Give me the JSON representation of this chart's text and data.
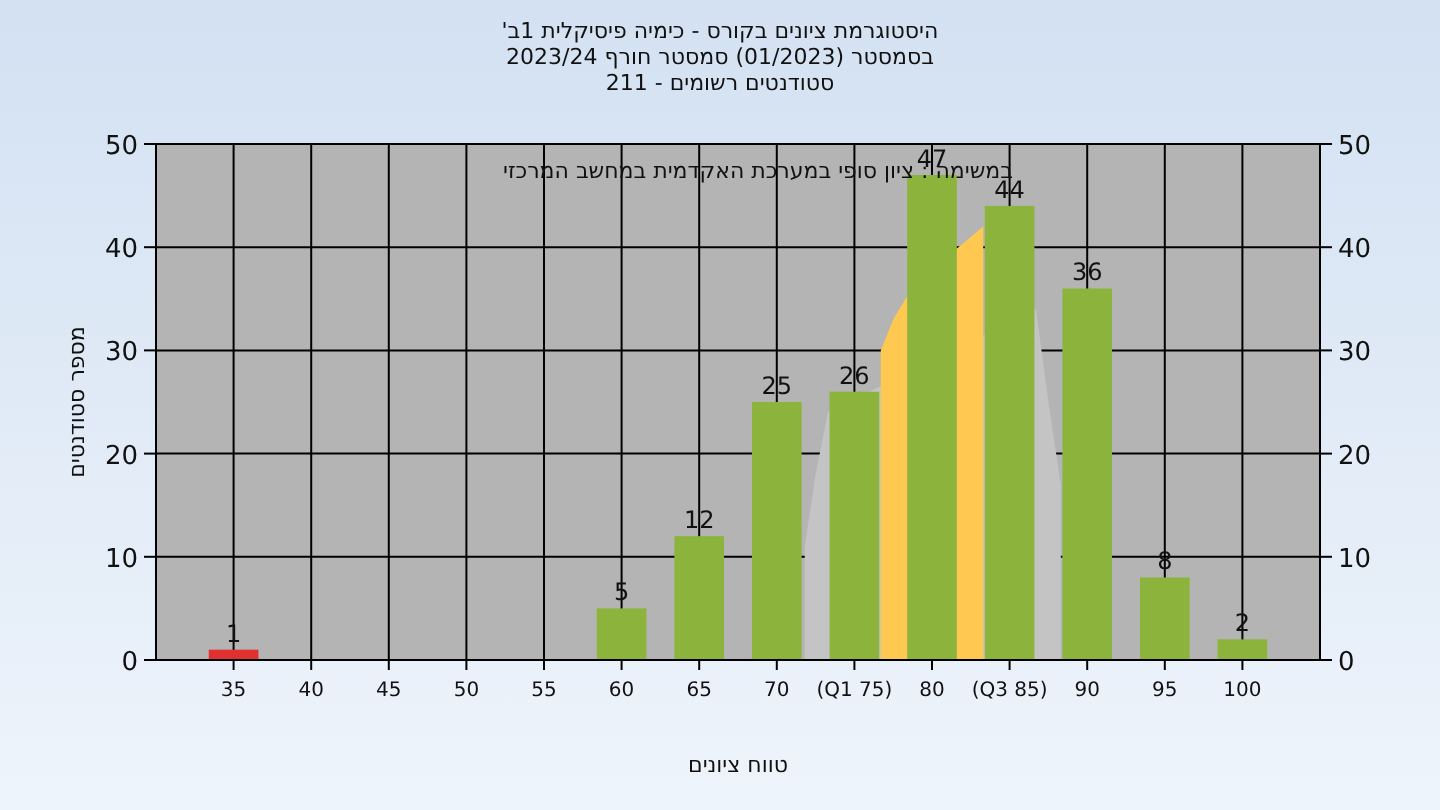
{
  "chart_data": {
    "type": "bar",
    "title": "היסטוגרמת ציונים בקורס - כימיה פיסיקלית 1ב'",
    "subtitle": "בסמסטר  (01/2023)  סמסטר חורף 2023/24\nסטודנטים רשומים - 211",
    "xlabel": "טווח ציונים",
    "ylabel": "מספר סטודנטים",
    "annotations": [
      "במשימה : ציון סופי במערכת האקדמית במחשב המרכזי"
    ],
    "xlim": [
      30,
      105
    ],
    "xticks": [
      35,
      40,
      45,
      50,
      55,
      60,
      65,
      70,
      {
        "value": 75,
        "label": "(Q1 75)"
      },
      80,
      {
        "value": 85,
        "label": "(Q3 85)"
      },
      90,
      95,
      100
    ],
    "ylim": [
      0,
      50
    ],
    "yticks": [
      0,
      10,
      20,
      30,
      40,
      50
    ],
    "y2lim": [
      0,
      50
    ],
    "y2ticks": [
      0,
      10,
      20,
      30,
      40,
      50
    ],
    "grid": true,
    "series": [
      {
        "type": "area",
        "color": "#c4c4c4",
        "x": [
          71.8,
          72.5,
          73.3,
          86.7,
          87.5,
          88.3
        ],
        "values": [
          11,
          18,
          24,
          34,
          25,
          17
        ]
      },
      {
        "type": "area",
        "color": "#ffc850",
        "x": [
          76.7,
          77.5,
          78.3,
          81.7,
          82.5,
          83.3
        ],
        "values": [
          30,
          33,
          35,
          40,
          41,
          42
        ]
      },
      {
        "x": [
          35,
          60,
          65,
          70,
          75,
          80,
          85,
          90,
          95,
          100
        ],
        "values": [
          1,
          5,
          12,
          25,
          26,
          47,
          44,
          36,
          8,
          2
        ],
        "colors": [
          "#e03030",
          "#8cb43c",
          "#8cb43c",
          "#8cb43c",
          "#8cb43c",
          "#8cb43c",
          "#8cb43c",
          "#8cb43c",
          "#8cb43c",
          "#8cb43c"
        ],
        "value_labels": [
          "1",
          "5",
          "12",
          "25",
          "26",
          "47",
          "44",
          "36",
          "8",
          "2"
        ]
      }
    ]
  }
}
